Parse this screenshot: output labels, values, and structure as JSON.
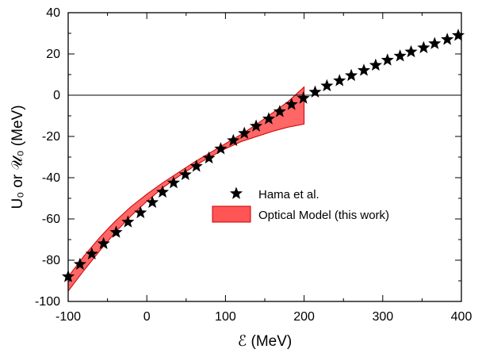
{
  "chart_data": {
    "type": "scatter",
    "xlabel": "ℰ (MeV)",
    "ylabel": "U₀ or 𝒰₀ (MeV)",
    "xlim": [
      -100,
      400
    ],
    "ylim": [
      -100,
      40
    ],
    "xticks": [
      -100,
      0,
      100,
      200,
      300,
      400
    ],
    "yticks": [
      -100,
      -80,
      -60,
      -40,
      -20,
      0,
      20,
      40
    ],
    "xtick_labels": [
      "-100",
      "0",
      "100",
      "200",
      "300",
      "400"
    ],
    "ytick_labels": [
      "-100",
      "-80",
      "-60",
      "-40",
      "-20",
      "0",
      "20",
      "40"
    ],
    "zero_line": 0,
    "legend_position": "center-right",
    "series": [
      {
        "name": "Hama et al.",
        "marker": "star",
        "color": "#000000",
        "x": [
          -100,
          -85,
          -70,
          -55,
          -39,
          -24,
          -8,
          7,
          20,
          34,
          49,
          63,
          79,
          94,
          110,
          124,
          139,
          155,
          169,
          184,
          199,
          214,
          229,
          245,
          260,
          276,
          291,
          306,
          322,
          336,
          352,
          366,
          382,
          396
        ],
        "y": [
          -88,
          -82,
          -77,
          -72,
          -66.5,
          -61.5,
          -57,
          -52,
          -47,
          -42.5,
          -38.5,
          -34.5,
          -30.5,
          -26,
          -22,
          -18.5,
          -15,
          -11.5,
          -8,
          -4.5,
          -1.5,
          1.5,
          4.5,
          7,
          9.5,
          12,
          14.5,
          17,
          19,
          21,
          23,
          25,
          27,
          29
        ]
      },
      {
        "name": "Optical Model (this work)",
        "type": "band",
        "color": "#ff5555",
        "edge_color": "#cc0000",
        "x": [
          -100,
          -80,
          -60,
          -40,
          -20,
          0,
          20,
          40,
          60,
          80,
          100,
          120,
          140,
          160,
          180,
          200
        ],
        "upper": [
          -88,
          -78,
          -69,
          -61,
          -54,
          -48,
          -42.5,
          -37.5,
          -32.5,
          -28,
          -23.5,
          -19,
          -14,
          -8.5,
          -3,
          4
        ],
        "lower": [
          -95,
          -85,
          -75.5,
          -66.5,
          -58.5,
          -51.5,
          -45,
          -39.5,
          -34.5,
          -30,
          -26,
          -22.5,
          -20,
          -17.5,
          -15.5,
          -14
        ]
      }
    ]
  }
}
